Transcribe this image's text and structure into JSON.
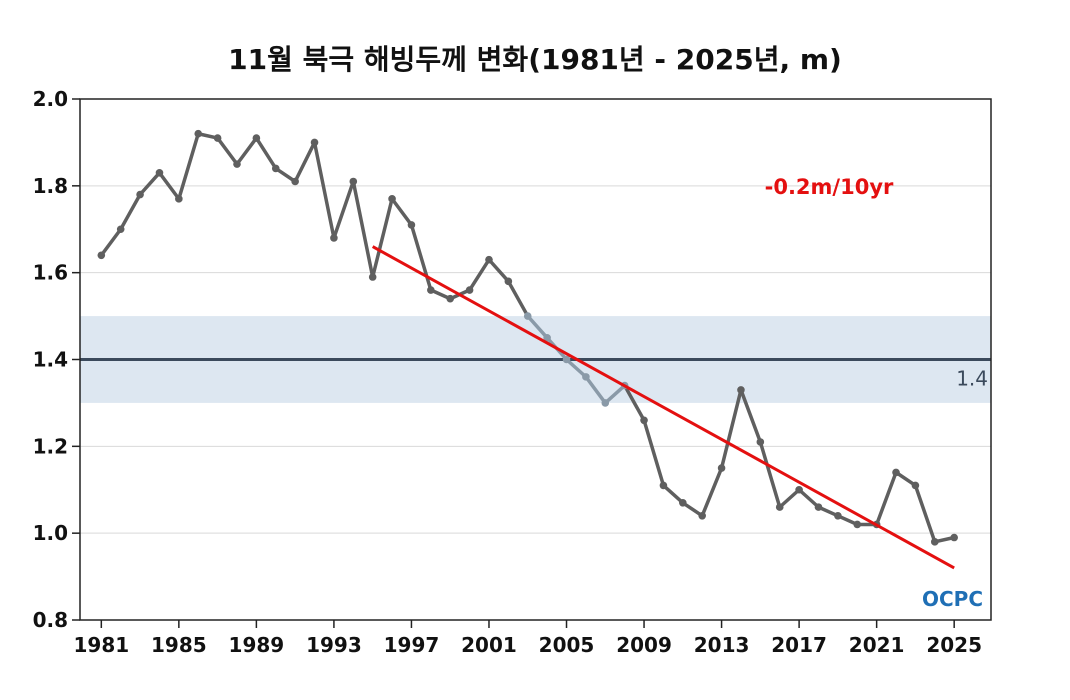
{
  "chart_data": {
    "type": "line",
    "title": "11월 북극 해빙두께 변화(1981년 - 2025년, m)",
    "xlabel": "",
    "ylabel": "",
    "x": [
      1981,
      1982,
      1983,
      1984,
      1985,
      1986,
      1987,
      1988,
      1989,
      1990,
      1991,
      1992,
      1993,
      1994,
      1995,
      1996,
      1997,
      1998,
      1999,
      2000,
      2001,
      2002,
      2003,
      2004,
      2005,
      2006,
      2007,
      2008,
      2009,
      2010,
      2011,
      2012,
      2013,
      2014,
      2015,
      2016,
      2017,
      2018,
      2019,
      2020,
      2021,
      2022,
      2023,
      2024,
      2025
    ],
    "series": [
      {
        "values": [
          1.64,
          1.7,
          1.78,
          1.83,
          1.77,
          1.92,
          1.91,
          1.85,
          1.91,
          1.84,
          1.81,
          1.9,
          1.68,
          1.81,
          1.59,
          1.77,
          1.71,
          1.56,
          1.54,
          1.56,
          1.63,
          1.58,
          1.5,
          1.45,
          1.4,
          1.36,
          1.3,
          1.34,
          1.26,
          1.11,
          1.07,
          1.04,
          1.15,
          1.33,
          1.21,
          1.06,
          1.1,
          1.06,
          1.04,
          1.02,
          1.02,
          1.14,
          1.11,
          0.98,
          0.99
        ],
        "color": "#5f5f5f"
      }
    ],
    "ylim": [
      0.8,
      2.0
    ],
    "xlim": [
      1979.9,
      2026.9
    ],
    "yticks": [
      "0.8",
      "1.0",
      "1.2",
      "1.4",
      "1.6",
      "1.8",
      "2.0"
    ],
    "xticks": [
      "1981",
      "1985",
      "1989",
      "1993",
      "1997",
      "2001",
      "2005",
      "2009",
      "2013",
      "2017",
      "2021",
      "2025"
    ],
    "reference_line": {
      "value": 1.4,
      "label": "1.4",
      "band": [
        1.3,
        1.5
      ],
      "color": "#3b4a5c",
      "band_color": "#dde7f1"
    },
    "trend": {
      "label": "-0.2m/10yr",
      "start": [
        1995,
        1.66
      ],
      "end": [
        2025,
        0.92
      ],
      "color": "#e41010"
    },
    "grid": true,
    "faded_points_color": "#8a9aa8"
  },
  "logo": {
    "text": "OCPC",
    "color": "#1f6fb5"
  }
}
